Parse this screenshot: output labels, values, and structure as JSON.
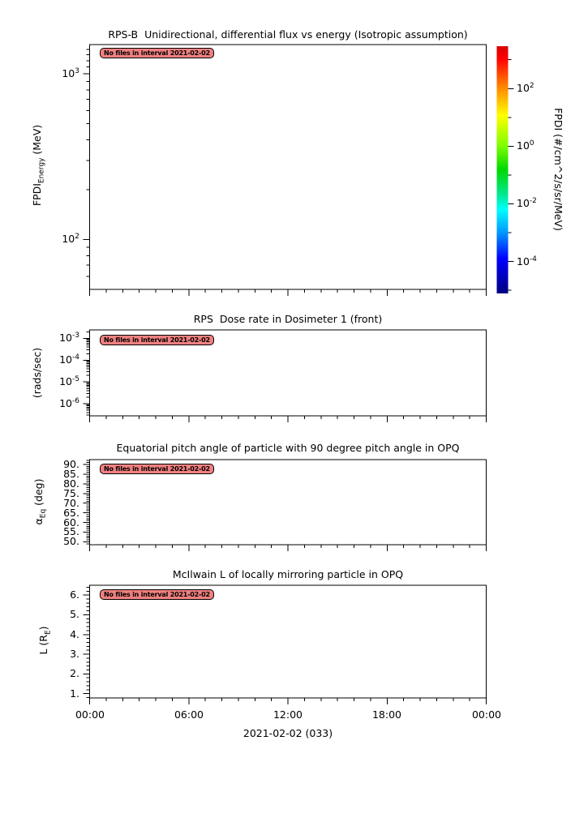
{
  "chart_data": {
    "type": "heatmap",
    "description": "Stack of four empty time-series panels (no data plotted in interval)",
    "x_axis": {
      "range_hours": [
        0,
        24
      ],
      "major_tick_hours": [
        0,
        6,
        12,
        18,
        24
      ],
      "minor_tick_step_hours": 1,
      "tick_labels": [
        "00:00",
        "06:00",
        "12:00",
        "18:00",
        "00:00"
      ],
      "date_label": "2021-02-02 (033)"
    },
    "style": {
      "background": "#FFFFFF",
      "axis_color": "#000000",
      "annotation_fill": "#F08080",
      "annotation_border": "#000000",
      "annotation_text_color": "#000000"
    },
    "colorbar": {
      "label": "FPDI (#/cm^2/s/sr/MeV)",
      "scale": "log",
      "exp_range": [
        -5.11,
        3.47
      ],
      "major_ticks": [
        {
          "exp": 2,
          "parts": [
            {
              "t": "10"
            },
            {
              "t": "2",
              "sup": true
            }
          ]
        },
        {
          "exp": 0,
          "parts": [
            {
              "t": "10"
            },
            {
              "t": "0",
              "sup": true
            }
          ]
        },
        {
          "exp": -2,
          "parts": [
            {
              "t": "10"
            },
            {
              "t": "-2",
              "sup": true
            }
          ]
        },
        {
          "exp": -4,
          "parts": [
            {
              "t": "10"
            },
            {
              "t": "-4",
              "sup": true
            }
          ]
        }
      ],
      "minor_tick_exps": [
        3,
        1,
        -1,
        -3,
        -5
      ],
      "gradient_stops": [
        {
          "offset": 0.0,
          "color": "#D80000"
        },
        {
          "offset": 0.05,
          "color": "#FF0000"
        },
        {
          "offset": 0.16,
          "color": "#FF8000"
        },
        {
          "offset": 0.28,
          "color": "#FFFF00"
        },
        {
          "offset": 0.4,
          "color": "#80FF00"
        },
        {
          "offset": 0.5,
          "color": "#00D800"
        },
        {
          "offset": 0.6,
          "color": "#00E890"
        },
        {
          "offset": 0.66,
          "color": "#00FFFF"
        },
        {
          "offset": 0.76,
          "color": "#0090FF"
        },
        {
          "offset": 0.86,
          "color": "#0000FF"
        },
        {
          "offset": 1.0,
          "color": "#000080"
        }
      ]
    },
    "panels": [
      {
        "title": "RPS-B  Unidirectional, differential flux vs energy (Isotropic assumption)",
        "ylabel_parts": [
          {
            "t": "FPDI"
          },
          {
            "t": "Energy",
            "sub": true
          },
          {
            "t": " (MeV)"
          }
        ],
        "annotation": "No files in interval 2021-02-02",
        "series": [],
        "y_axis": {
          "scale": "log",
          "range": [
            50,
            1500
          ],
          "major_ticks": [
            {
              "v": 1000,
              "parts": [
                {
                  "t": "10"
                },
                {
                  "t": "3",
                  "sup": true
                }
              ]
            },
            {
              "v": 100,
              "parts": [
                {
                  "t": "10"
                },
                {
                  "t": "2",
                  "sup": true
                }
              ]
            }
          ],
          "extra_minor_values": [
            1100,
            1200,
            1300,
            1400
          ]
        }
      },
      {
        "title": "RPS  Dose rate in Dosimeter 1 (front)",
        "ylabel_parts": [
          {
            "t": "(rads/sec)"
          }
        ],
        "annotation": "No files in interval 2021-02-02",
        "series": [],
        "y_axis": {
          "scale": "log",
          "range": [
            2.8e-07,
            0.00245
          ],
          "major_ticks": [
            {
              "v": 0.001,
              "parts": [
                {
                  "t": "10"
                },
                {
                  "t": "-3",
                  "sup": true
                }
              ]
            },
            {
              "v": 0.0001,
              "parts": [
                {
                  "t": "10"
                },
                {
                  "t": "-4",
                  "sup": true
                }
              ]
            },
            {
              "v": 1e-05,
              "parts": [
                {
                  "t": "10"
                },
                {
                  "t": "-5",
                  "sup": true
                }
              ]
            },
            {
              "v": 1e-06,
              "parts": [
                {
                  "t": "10"
                },
                {
                  "t": "-6",
                  "sup": true
                }
              ]
            }
          ]
        }
      },
      {
        "title": "Equatorial pitch angle of particle with 90 degree pitch angle in OPQ",
        "ylabel_parts": [
          {
            "t": "α"
          },
          {
            "t": "Eq",
            "sub": true
          },
          {
            "t": " (deg)"
          }
        ],
        "annotation": "No files in interval 2021-02-02",
        "series": [],
        "y_axis": {
          "scale": "linear",
          "range": [
            48.5,
            92.5
          ],
          "minor_step": 1,
          "major_ticks": [
            {
              "v": 90,
              "parts": [
                {
                  "t": "90."
                }
              ]
            },
            {
              "v": 85,
              "parts": [
                {
                  "t": "85."
                }
              ]
            },
            {
              "v": 80,
              "parts": [
                {
                  "t": "80."
                }
              ]
            },
            {
              "v": 75,
              "parts": [
                {
                  "t": "75."
                }
              ]
            },
            {
              "v": 70,
              "parts": [
                {
                  "t": "70."
                }
              ]
            },
            {
              "v": 65,
              "parts": [
                {
                  "t": "65."
                }
              ]
            },
            {
              "v": 60,
              "parts": [
                {
                  "t": "60."
                }
              ]
            },
            {
              "v": 55,
              "parts": [
                {
                  "t": "55."
                }
              ]
            },
            {
              "v": 50,
              "parts": [
                {
                  "t": "50."
                }
              ]
            }
          ]
        }
      },
      {
        "title": "McIlwain L of locally mirroring particle in OPQ",
        "ylabel_parts": [
          {
            "t": "L (R"
          },
          {
            "t": "E",
            "sub": true
          },
          {
            "t": ")"
          }
        ],
        "annotation": "No files in interval 2021-02-02",
        "series": [],
        "y_axis": {
          "scale": "linear",
          "range": [
            0.78,
            6.5
          ],
          "minor_step": 0.2,
          "major_ticks": [
            {
              "v": 6,
              "parts": [
                {
                  "t": "6."
                }
              ]
            },
            {
              "v": 5,
              "parts": [
                {
                  "t": "5."
                }
              ]
            },
            {
              "v": 4,
              "parts": [
                {
                  "t": "4."
                }
              ]
            },
            {
              "v": 3,
              "parts": [
                {
                  "t": "3."
                }
              ]
            },
            {
              "v": 2,
              "parts": [
                {
                  "t": "2."
                }
              ]
            },
            {
              "v": 1,
              "parts": [
                {
                  "t": "1."
                }
              ]
            }
          ]
        }
      }
    ]
  }
}
